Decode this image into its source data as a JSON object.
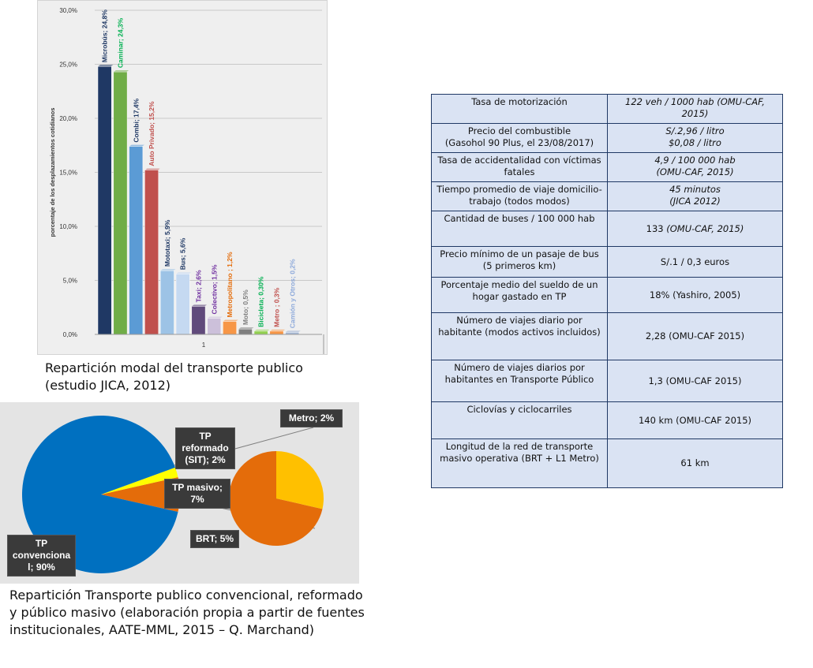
{
  "chart_data": [
    {
      "type": "bar",
      "categories": [
        "1"
      ],
      "ylabel": "porcentaje de los desplazamientos cotidianos",
      "ylim": [
        0,
        30
      ],
      "yticks": [
        "0,0%",
        "5,0%",
        "10,0%",
        "15,0%",
        "20,0%",
        "25,0%",
        "30,0%"
      ],
      "grid": true,
      "series": [
        {
          "name": "Microbús",
          "values": [
            24.8
          ],
          "label": "Microbús; 24,8%",
          "color": "#1f3864",
          "label_color": "#1f3864"
        },
        {
          "name": "Caminar",
          "values": [
            24.3
          ],
          "label": "Caminar; 24,3%",
          "color": "#70ad47",
          "label_color": "#00b050"
        },
        {
          "name": "Combi",
          "values": [
            17.4
          ],
          "label": "Combi; 17,4%",
          "color": "#5b9bd5",
          "label_color": "#1f3864"
        },
        {
          "name": "Auto Privado",
          "values": [
            15.2
          ],
          "label": "Auto Privado; 15,2%",
          "color": "#c0504d",
          "label_color": "#c0504d"
        },
        {
          "name": "Mototaxi",
          "values": [
            5.9
          ],
          "label": "Mototaxi; 5,9%",
          "color": "#9dc3e6",
          "label_color": "#1f3864"
        },
        {
          "name": "Bus",
          "values": [
            5.6
          ],
          "label": "Bus; 5,6%",
          "color": "#c5d9f1",
          "label_color": "#1f3864"
        },
        {
          "name": "Taxi",
          "values": [
            2.6
          ],
          "label": "Taxi; 2,6%",
          "color": "#604a7b",
          "label_color": "#7030a0"
        },
        {
          "name": "Colectivo",
          "values": [
            1.5
          ],
          "label": "Colectivo; 1,5%",
          "color": "#ccc0da",
          "label_color": "#7030a0"
        },
        {
          "name": "Metropolitano",
          "values": [
            1.2
          ],
          "label": "Metropolitano ; 1,2%",
          "color": "#f79646",
          "label_color": "#e46c0a"
        },
        {
          "name": "Moto",
          "values": [
            0.5
          ],
          "label": "Moto; 0,5%",
          "color": "#7f7f7f",
          "label_color": "#7f7f7f"
        },
        {
          "name": "Bicicleta",
          "values": [
            0.3
          ],
          "label": "Bicicleta; 0,30%",
          "color": "#92d050",
          "label_color": "#00b050"
        },
        {
          "name": "Metro",
          "values": [
            0.3
          ],
          "label": "Metro ; 0,3%",
          "color": "#f79646",
          "label_color": "#c0504d"
        },
        {
          "name": "Camión y Otros",
          "values": [
            0.2
          ],
          "label": "Camión y Otros; 0,2%",
          "color": "#a5b8d6",
          "label_color": "#8eaadb"
        }
      ]
    },
    {
      "type": "pie",
      "series": [
        {
          "name": "TP convencional",
          "value": 90,
          "label": "TP convenciona l; 90%",
          "color": "#0070c0"
        },
        {
          "name": "TP reformado (SIT)",
          "value": 2,
          "label": "TP reformado (SIT); 2%",
          "color": "#ffff00"
        },
        {
          "name": "TP masivo",
          "value": 7,
          "label": "TP masivo; 7%",
          "color": "#e46c0a"
        }
      ],
      "sub_pie": [
        {
          "name": "BRT",
          "value": 5,
          "label": "BRT; 5%",
          "color": "#e46c0a"
        },
        {
          "name": "Metro",
          "value": 2,
          "label": "Metro; 2%",
          "color": "#ffc000"
        }
      ]
    }
  ],
  "bar_caption": "Repartición modal del transporte publico (estudio JICA, 2012)",
  "pie_labels": {
    "convencional": [
      "TP",
      "convenciona",
      "l; 90%"
    ],
    "reformado": [
      "TP",
      "reformado",
      "(SIT); 2%"
    ],
    "masivo": [
      "TP masivo;",
      "7%"
    ],
    "brt": "BRT; 5%",
    "metro": "Metro; 2%"
  },
  "pie_caption": "Repartición Transporte publico convencional, reformado y público masivo (elaboración propia a partir de fuentes institucionales, AATE-MML, 2015 – Q. Marchand)",
  "table": {
    "rows": [
      {
        "label": "Tasa de motorización",
        "value": "122 veh / 1000 hab (OMU-CAF, 2015)"
      },
      {
        "label": "Precio del combustible",
        "label2": "(Gasohol 90 Plus, el 23/08/2017)",
        "value": "S/.2,96 / litro",
        "value2": "$0,08 / litro"
      },
      {
        "label": "Tasa de accidentalidad con víctimas fatales",
        "value": "4,9 / 100 000 hab",
        "value2": "(OMU-CAF, 2015)"
      },
      {
        "label": "Tiempo promedio de viaje domicilio-trabajo (todos modos)",
        "value": "45 minutos",
        "value2": "(JICA 2012)"
      },
      {
        "label": "Cantidad de buses / 100 000 hab",
        "value": "133",
        "value_it": "(OMU-CAF, 2015)"
      },
      {
        "label": "Precio mínimo de un pasaje de bus (5 primeros km)",
        "value": "S/.1 / 0,3 euros"
      },
      {
        "label": "Porcentaje medio del sueldo de un hogar gastado en TP",
        "value": "18% (Yashiro, 2005)"
      },
      {
        "label": "Número de viajes diario por habitante (modos activos incluidos)",
        "value": "2,28 (OMU-CAF 2015)"
      },
      {
        "label": "Número de viajes diarios por habitantes en Transporte Público",
        "value": "1,3 (OMU-CAF 2015)"
      },
      {
        "label": "Ciclovías y ciclocarriles",
        "value": "140 km (OMU-CAF 2015)"
      },
      {
        "label": "Longitud de la red de transporte masivo operativa (BRT + L1 Metro)",
        "value": "61 km"
      }
    ]
  }
}
